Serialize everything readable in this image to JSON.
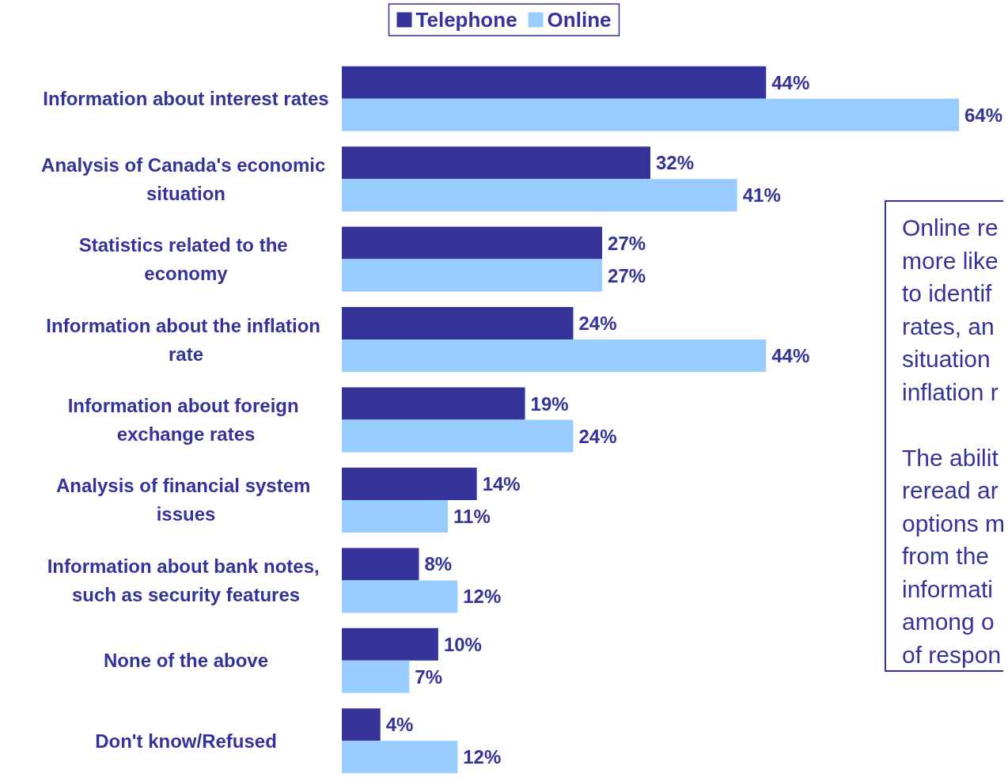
{
  "chart_data": {
    "type": "bar",
    "orientation": "horizontal",
    "categories": [
      "Information about interest rates",
      "Analysis of Canada's economic situation",
      "Statistics related to the economy",
      "Information about the inflation rate",
      "Information about foreign exchange rates",
      "Analysis of financial system issues",
      "Information about bank notes, such as security features",
      "None of the above",
      "Don't know/Refused"
    ],
    "series": [
      {
        "name": "Telephone",
        "color": "#333399",
        "values": [
          44,
          32,
          27,
          24,
          19,
          14,
          8,
          10,
          4
        ],
        "value_labels": [
          "44%",
          "32%",
          "27%",
          "24%",
          "19%",
          "14%",
          "8%",
          "10%",
          "4%"
        ]
      },
      {
        "name": "Online",
        "color": "#99ccff",
        "values": [
          64,
          41,
          27,
          44,
          24,
          11,
          12,
          7,
          12
        ],
        "value_labels": [
          "64%",
          "41%",
          "27%",
          "44%",
          "24%",
          "11%",
          "12%",
          "7%",
          "12%"
        ]
      }
    ],
    "legend": "top",
    "annotations": [
      "Online re\nmore like\nto identif\nrates, an\nsituation\ninflation r\n\nThe abilit\nreread ar\noptions m\nfrom the\ninformati\namong o\nof respon"
    ]
  }
}
